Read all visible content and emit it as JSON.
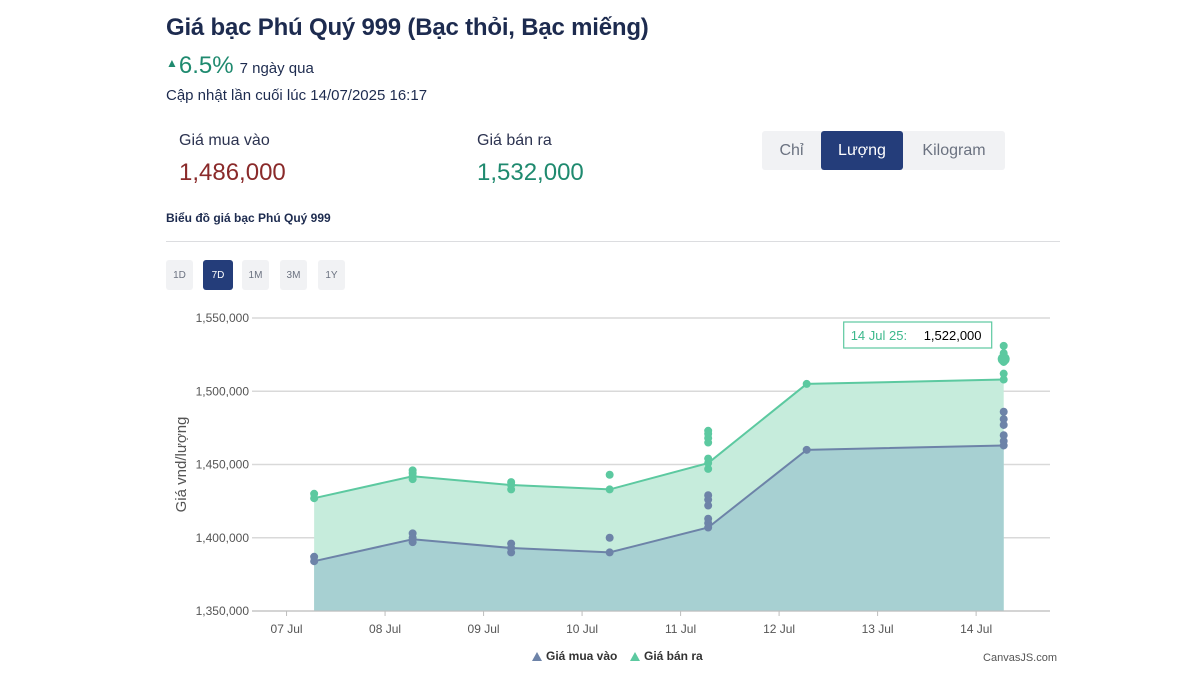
{
  "header": {
    "title": "Giá bạc Phú Quý 999 (Bạc thỏi, Bạc miếng)",
    "change_value": "6.5%",
    "change_label": "7 ngày qua",
    "updated": "Cập nhật lần cuối lúc 14/07/2025 16:17"
  },
  "prices": {
    "buy_label": "Giá mua vào",
    "buy_value": "1,486,000",
    "sell_label": "Giá bán ra",
    "sell_value": "1,532,000"
  },
  "units": [
    {
      "label": "Chỉ",
      "active": false
    },
    {
      "label": "Lượng",
      "active": true
    },
    {
      "label": "Kilogram",
      "active": false
    }
  ],
  "chart_caption": "Biểu đồ giá bạc Phú Quý 999",
  "ranges": [
    {
      "label": "1D",
      "active": false
    },
    {
      "label": "7D",
      "active": true
    },
    {
      "label": "1M",
      "active": false
    },
    {
      "label": "3M",
      "active": false
    },
    {
      "label": "1Y",
      "active": false
    }
  ],
  "colors": {
    "buy": "#6d83a8",
    "sell": "#5cc9a0",
    "accent": "#243d7a"
  },
  "chart_data": {
    "type": "area",
    "ylabel": "Giá vnd/lượng",
    "ylim": [
      1350000,
      1550000
    ],
    "ytick_values": [
      1350000,
      1400000,
      1450000,
      1500000,
      1550000
    ],
    "ytick_labels": [
      "1,350,000",
      "1,400,000",
      "1,450,000",
      "1,500,000",
      "1,550,000"
    ],
    "xlim": [
      -0.3,
      7.75
    ],
    "xtick_values": [
      0,
      1,
      2,
      3,
      4,
      5,
      6,
      7
    ],
    "xtick_labels": [
      "07 Jul",
      "08 Jul",
      "09 Jul",
      "10 Jul",
      "11 Jul",
      "12 Jul",
      "13 Jul",
      "14 Jul"
    ],
    "grid": true,
    "legend_position": "bottom",
    "series": [
      {
        "name": "Giá bán ra",
        "color": "#5cc9a0",
        "line": [
          [
            0.28,
            1427000
          ],
          [
            1.28,
            1442000
          ],
          [
            2.28,
            1436000
          ],
          [
            3.28,
            1433000
          ],
          [
            4.28,
            1451000
          ],
          [
            5.28,
            1505000
          ],
          [
            7.28,
            1508000
          ]
        ],
        "points": [
          [
            0.28,
            1427000
          ],
          [
            0.28,
            1430000
          ],
          [
            1.28,
            1440000
          ],
          [
            1.28,
            1442000
          ],
          [
            1.28,
            1444000
          ],
          [
            1.28,
            1446000
          ],
          [
            2.28,
            1433000
          ],
          [
            2.28,
            1436000
          ],
          [
            2.28,
            1438000
          ],
          [
            3.28,
            1433000
          ],
          [
            3.28,
            1443000
          ],
          [
            4.28,
            1447000
          ],
          [
            4.28,
            1451000
          ],
          [
            4.28,
            1454000
          ],
          [
            4.28,
            1465000
          ],
          [
            4.28,
            1468000
          ],
          [
            4.28,
            1471000
          ],
          [
            4.28,
            1473000
          ],
          [
            5.28,
            1505000
          ],
          [
            7.28,
            1508000
          ],
          [
            7.28,
            1512000
          ],
          [
            7.28,
            1520000
          ],
          [
            7.28,
            1522000
          ],
          [
            7.28,
            1524000
          ],
          [
            7.28,
            1526000
          ],
          [
            7.28,
            1531000
          ]
        ]
      },
      {
        "name": "Giá mua vào",
        "color": "#6d83a8",
        "line": [
          [
            0.28,
            1384000
          ],
          [
            1.28,
            1399000
          ],
          [
            2.28,
            1393000
          ],
          [
            3.28,
            1390000
          ],
          [
            4.28,
            1407000
          ],
          [
            5.28,
            1460000
          ],
          [
            7.28,
            1463000
          ]
        ],
        "points": [
          [
            0.28,
            1384000
          ],
          [
            0.28,
            1387000
          ],
          [
            1.28,
            1397000
          ],
          [
            1.28,
            1400000
          ],
          [
            1.28,
            1403000
          ],
          [
            2.28,
            1390000
          ],
          [
            2.28,
            1393000
          ],
          [
            2.28,
            1396000
          ],
          [
            3.28,
            1390000
          ],
          [
            3.28,
            1400000
          ],
          [
            4.28,
            1407000
          ],
          [
            4.28,
            1410000
          ],
          [
            4.28,
            1413000
          ],
          [
            4.28,
            1422000
          ],
          [
            4.28,
            1426000
          ],
          [
            4.28,
            1429000
          ],
          [
            5.28,
            1460000
          ],
          [
            7.28,
            1463000
          ],
          [
            7.28,
            1466000
          ],
          [
            7.28,
            1470000
          ],
          [
            7.28,
            1477000
          ],
          [
            7.28,
            1481000
          ],
          [
            7.28,
            1486000
          ]
        ]
      }
    ],
    "tooltip": {
      "label": "14 Jul 25:",
      "value": "1,522,000"
    },
    "credit": "CanvasJS.com"
  }
}
